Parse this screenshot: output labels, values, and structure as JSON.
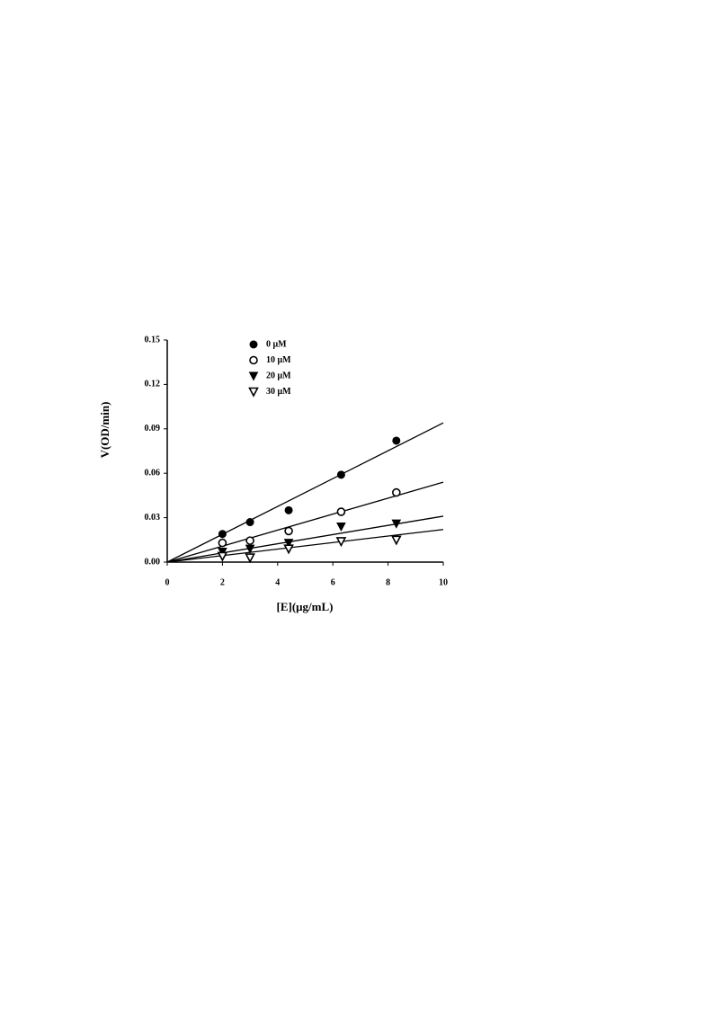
{
  "chart_data": {
    "type": "scatter",
    "x_label": "[E](μg/mL)",
    "y_label": "V(OD/min)",
    "xlim": [
      0,
      10
    ],
    "xticks": [
      0,
      2,
      4,
      6,
      8,
      10
    ],
    "ylim": [
      0,
      0.15
    ],
    "yticks": [
      {
        "value": 0,
        "label": "0.00"
      },
      {
        "value": 0.03,
        "label": "0.03"
      },
      {
        "value": 0.06,
        "label": "0.06"
      },
      {
        "value": 0.09,
        "label": "0.09"
      },
      {
        "value": 0.12,
        "label": "0.12"
      },
      {
        "value": 0.15,
        "label": "0.15"
      }
    ],
    "x": [
      2.0,
      3.0,
      4.4,
      6.3,
      8.3
    ],
    "fit_x": [
      0,
      10
    ],
    "legend": "upper left",
    "series": [
      {
        "name": "0 μM",
        "color": "#000000",
        "marker": "circle",
        "values": [
          0.019,
          0.027,
          0.035,
          0.059,
          0.082
        ],
        "fit_values": [
          0,
          0.094
        ]
      },
      {
        "name": "10 μM",
        "color": "#000000",
        "marker": "circle-open",
        "values": [
          0.013,
          0.0145,
          0.021,
          0.034,
          0.047
        ],
        "fit_values": [
          0,
          0.054
        ]
      },
      {
        "name": "20 μM",
        "color": "#000000",
        "marker": "triangle-down",
        "values": [
          0.007,
          0.009,
          0.013,
          0.024,
          0.026
        ],
        "fit_values": [
          0,
          0.031
        ]
      },
      {
        "name": "30 μM",
        "color": "#000000",
        "marker": "triangle-down-open",
        "values": [
          0.004,
          0.003,
          0.009,
          0.014,
          0.015
        ],
        "fit_values": [
          0,
          0.022
        ]
      }
    ]
  }
}
